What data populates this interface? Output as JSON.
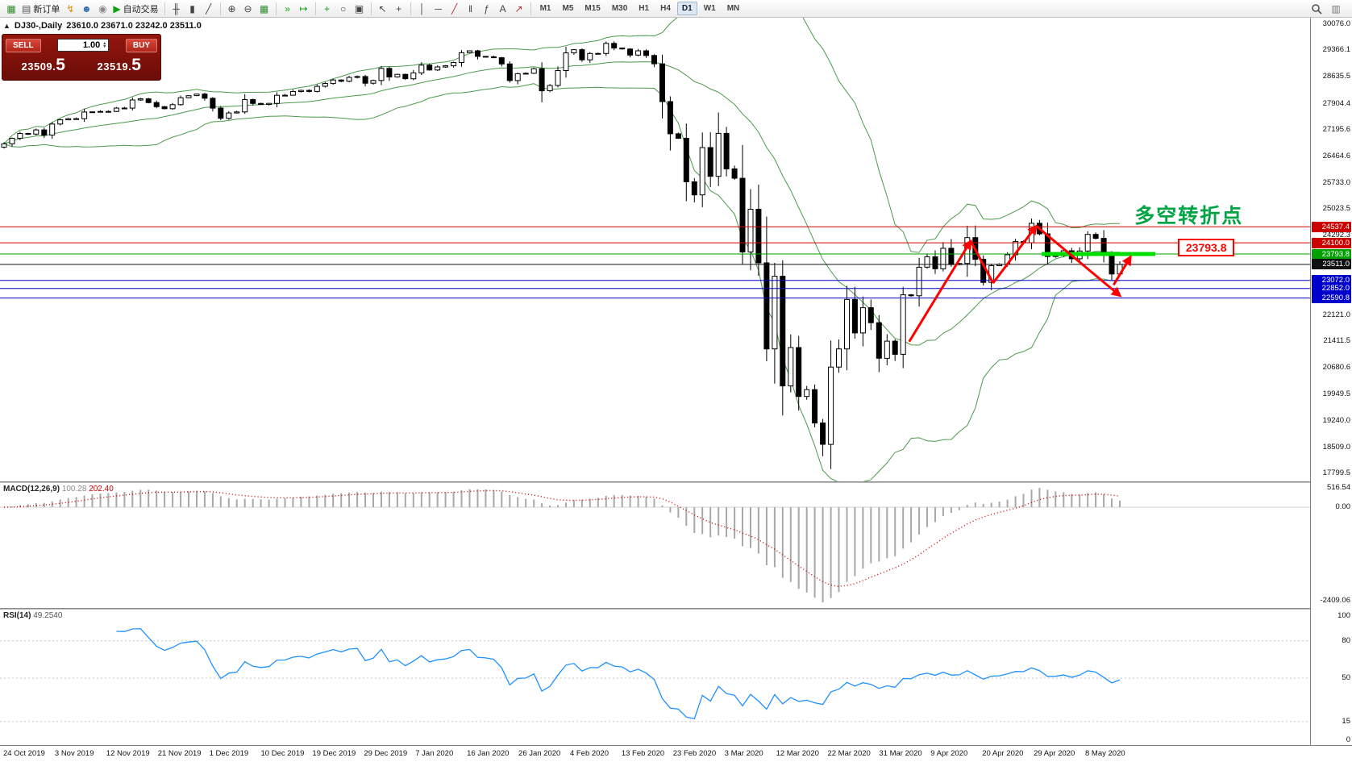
{
  "toolbar": {
    "groups": [
      {
        "items": [
          {
            "name": "new-chart",
            "glyph": "▦",
            "color": "#2d8c2d"
          },
          {
            "name": "new-order",
            "glyph": "▤",
            "color": "#555555",
            "label": "新订单"
          },
          {
            "name": "alert",
            "glyph": "↯",
            "color": "#e08a00"
          },
          {
            "name": "community",
            "glyph": "☻",
            "color": "#2f6fb0"
          },
          {
            "name": "signals",
            "glyph": "◉",
            "color": "#8a8a8a"
          },
          {
            "name": "auto-trading",
            "glyph": "▶",
            "color": "#11a011",
            "label": "自动交易"
          }
        ]
      },
      {
        "items": [
          {
            "name": "bar-chart",
            "glyph": "╫",
            "color": "#444444"
          },
          {
            "name": "candlestick-chart",
            "glyph": "▮",
            "color": "#444444"
          },
          {
            "name": "line-chart",
            "glyph": "╱",
            "color": "#444444"
          }
        ]
      },
      {
        "items": [
          {
            "name": "zoom-in",
            "glyph": "⊕",
            "color": "#444444"
          },
          {
            "name": "zoom-out",
            "glyph": "⊖",
            "color": "#444444"
          },
          {
            "name": "tile-windows",
            "glyph": "▦",
            "color": "#2d8c2d"
          }
        ]
      },
      {
        "items": [
          {
            "name": "auto-scroll",
            "glyph": "»",
            "color": "#11a011"
          },
          {
            "name": "chart-shift",
            "glyph": "↦",
            "color": "#11a011"
          }
        ]
      },
      {
        "items": [
          {
            "name": "indicators",
            "glyph": "+",
            "color": "#11a011"
          },
          {
            "name": "periods",
            "glyph": "○",
            "color": "#444444"
          },
          {
            "name": "templates",
            "glyph": "▣",
            "color": "#444444"
          }
        ]
      },
      {
        "items": [
          {
            "name": "cursor",
            "glyph": "↖",
            "color": "#444444"
          },
          {
            "name": "crosshair",
            "glyph": "+",
            "color": "#444444"
          }
        ]
      },
      {
        "items": [
          {
            "name": "vertical-line",
            "glyph": "│",
            "color": "#444444"
          },
          {
            "name": "horizontal-line",
            "glyph": "─",
            "color": "#444444"
          },
          {
            "name": "trendline",
            "glyph": "╱",
            "color": "#b03030"
          },
          {
            "name": "channel",
            "glyph": "‖",
            "color": "#444444"
          },
          {
            "name": "fibonacci",
            "glyph": "ƒ",
            "color": "#444444"
          },
          {
            "name": "text-tool",
            "glyph": "A",
            "color": "#444444"
          },
          {
            "name": "arrows-tool",
            "glyph": "↗",
            "color": "#b03030"
          }
        ]
      }
    ],
    "timeframes": {
      "items": [
        "M1",
        "M5",
        "M15",
        "M30",
        "H1",
        "H4",
        "D1",
        "W1",
        "MN"
      ],
      "active": "D1"
    },
    "right_icons": [
      {
        "name": "search",
        "glyph": "svg-magnifier"
      },
      {
        "name": "toolbar-options",
        "glyph": "▥",
        "color": "#777777"
      }
    ]
  },
  "trade_panel": {
    "sell_label": "SELL",
    "buy_label": "BUY",
    "volume": "1.00",
    "sell_price": {
      "main": "23509.",
      "big": "5"
    },
    "buy_price": {
      "main": "23519.",
      "big": "5"
    }
  },
  "chart": {
    "title": "DJ30-,Daily",
    "ohlc": "23610.0 23671.0 23242.0 23511.0"
  },
  "chart_data": {
    "type": "candlestick",
    "symbol": "DJ30-",
    "timeframe": "Daily",
    "y_range": [
      17799.5,
      30076.0
    ],
    "y_axis_ticks": [
      "30076.0",
      "29366.1",
      "28635.5",
      "27904.4",
      "27195.6",
      "26464.6",
      "25733.0",
      "25023.5",
      "24292.3",
      "22121.0",
      "21411.5",
      "20680.6",
      "19949.5",
      "19240.0",
      "18509.0",
      "17799.5"
    ],
    "closes": [
      26805,
      26958,
      27090,
      27071,
      27186,
      27046,
      27347,
      27462,
      27493,
      27492,
      27675,
      27681,
      27691,
      27692,
      27784,
      27782,
      28005,
      28036,
      27934,
      27821,
      27766,
      27876,
      28066,
      28122,
      28164,
      28051,
      27783,
      27503,
      27650,
      27678,
      28015,
      27910,
      27882,
      27911,
      28132,
      28135,
      28236,
      28267,
      28239,
      28377,
      28455,
      28551,
      28516,
      28621,
      28645,
      28462,
      28538,
      28869,
      28635,
      28704,
      28584,
      28745,
      28957,
      28824,
      28907,
      28939,
      29030,
      29298,
      29348,
      29196,
      29186,
      29160,
      28990,
      28536,
      28723,
      28734,
      28859,
      28256,
      28400,
      28808,
      29291,
      29380,
      29103,
      29277,
      29276,
      29551,
      29423,
      29398,
      29232,
      29348,
      29220,
      28992,
      27961,
      27081,
      26958,
      25767,
      25409,
      26703,
      25917,
      27091,
      26121,
      25865,
      23851,
      25018,
      23553,
      21201,
      23186,
      20188,
      21237,
      19899,
      20087,
      19174,
      18592,
      20705,
      21200,
      22552,
      21637,
      22327,
      21917,
      20944,
      21413,
      21053,
      22680,
      22654,
      23434,
      23719,
      23391,
      23950,
      23504,
      23537,
      24242,
      23650,
      23019,
      23476,
      23515,
      23775,
      24134,
      24102,
      24634,
      24346,
      23724,
      23749,
      23883,
      23665,
      23876,
      24331,
      24222,
      23765,
      23248,
      23511
    ],
    "current_ohlc": {
      "open": 23610.0,
      "high": 23671.0,
      "low": 23242.0,
      "close": 23511.0
    },
    "indicators": {
      "bollinger": {
        "period": 20,
        "deviation": 2,
        "color": "#4a9a4a"
      },
      "macd": {
        "fast": 12,
        "slow": 26,
        "signal_period": 9,
        "current_macd": "100.28",
        "current_signal": "202.40",
        "scale_max": "516.54",
        "scale_zero": "0.00",
        "scale_min": "-2409.06"
      },
      "rsi": {
        "period": 14,
        "current": "49.2540",
        "scale": [
          "100",
          "80",
          "50",
          "15",
          "0"
        ],
        "levels": [
          80,
          50,
          15
        ]
      }
    },
    "horizontal_lines": [
      {
        "price": 24537.4,
        "label": "24537.4",
        "color": "#cc0000"
      },
      {
        "price": 24100.0,
        "label": "24100.0",
        "color": "#cc0000"
      },
      {
        "price": 23793.8,
        "label": "23793.8",
        "color": "#00a000"
      },
      {
        "price": 23511.0,
        "label": "23511.0",
        "color": "#111111"
      },
      {
        "price": 23072.0,
        "label": "23072.0",
        "color": "#0000cc"
      },
      {
        "price": 22852.0,
        "label": "22852.0",
        "color": "#0000cc"
      },
      {
        "price": 22590.8,
        "label": "22590.8",
        "color": "#0000cc"
      }
    ],
    "annotations": {
      "zigzag": [
        [
          0.694,
          21400
        ],
        [
          0.741,
          24150
        ],
        [
          0.758,
          23000
        ],
        [
          0.791,
          24560
        ],
        [
          0.855,
          22650
        ]
      ],
      "arrow_up": [
        [
          0.85,
          22950
        ],
        [
          0.863,
          23720
        ]
      ],
      "support_segment": {
        "price": 23793.8,
        "x_from": 0.795,
        "x_to": 0.882,
        "color": "#00dd00"
      },
      "text_note": {
        "label": "多空转折点",
        "x": 0.866,
        "price": 24920,
        "color": "#00a445"
      },
      "price_tag": {
        "label": "23793.8",
        "x": 0.899,
        "price": 23960
      }
    },
    "time_labels": [
      "24 Oct 2019",
      "3 Nov 2019",
      "12 Nov 2019",
      "21 Nov 2019",
      "1 Dec 2019",
      "10 Dec 2019",
      "19 Dec 2019",
      "29 Dec 2019",
      "7 Jan 2020",
      "16 Jan 2020",
      "26 Jan 2020",
      "4 Feb 2020",
      "13 Feb 2020",
      "23 Feb 2020",
      "3 Mar 2020",
      "12 Mar 2020",
      "22 Mar 2020",
      "31 Mar 2020",
      "9 Apr 2020",
      "20 Apr 2020",
      "29 Apr 2020",
      "8 May 2020"
    ]
  },
  "macd_panel": {
    "name": "MACD(12,26,9)",
    "value_macd": "100.28",
    "value_signal": "202.40"
  },
  "rsi_panel": {
    "name": "RSI(14)",
    "value": "49.2540"
  }
}
